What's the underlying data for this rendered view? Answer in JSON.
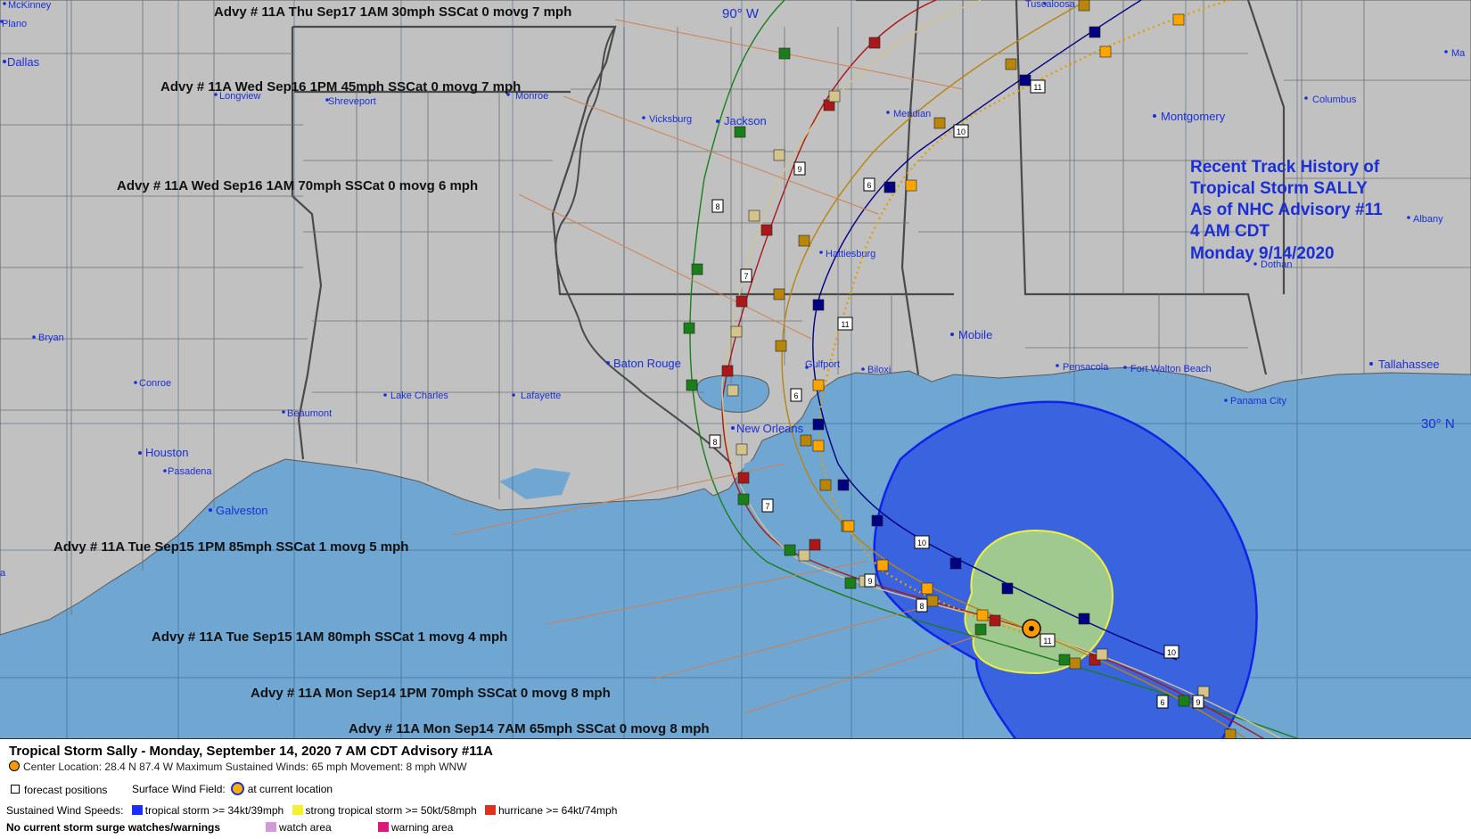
{
  "colors": {
    "land": "#c1c1c1",
    "water": "#6fa6d2",
    "ts_wind": "#3a63e0",
    "ts_wind_border": "#1023e8",
    "strong_ts_wind": "#a0c990",
    "strong_ts_border": "#f0f040",
    "boundary": "#505050",
    "title_text": "#1a2fd6",
    "legend_ts": "#1a2fff",
    "legend_strong": "#f7f030",
    "legend_hurricane": "#e0301e",
    "legend_watch": "#d49ad8",
    "legend_warning": "#e0167a"
  },
  "map_title": [
    "Recent Track History of",
    "Tropical Storm SALLY",
    "As of NHC Advisory #11",
    "4 AM CDT",
    "Monday 9/14/2020"
  ],
  "grid_labels": {
    "lon": "90° W",
    "lat": "30° N"
  },
  "cities": [
    {
      "name": "McKinney",
      "icon": "city-dot"
    },
    {
      "name": "Plano",
      "icon": "city-dot"
    },
    {
      "name": "Dallas",
      "icon": "city-dot"
    },
    {
      "name": "Tuscaloosa",
      "icon": "city-dot"
    },
    {
      "name": "Longview",
      "icon": "city-dot"
    },
    {
      "name": "Shreveport",
      "icon": "city-dot"
    },
    {
      "name": "Monroe",
      "icon": "city-dot"
    },
    {
      "name": "Vicksburg",
      "icon": "city-dot"
    },
    {
      "name": "Jackson",
      "icon": "city-dot"
    },
    {
      "name": "Meridian",
      "icon": "city-dot"
    },
    {
      "name": "Montgomery",
      "icon": "city-dot"
    },
    {
      "name": "Columbus",
      "icon": "city-dot"
    },
    {
      "name": "Albany",
      "icon": "city-dot"
    },
    {
      "name": "Dothan",
      "icon": "city-dot"
    },
    {
      "name": "Hattiesburg",
      "icon": "city-dot"
    },
    {
      "name": "Bryan",
      "icon": "city-dot"
    },
    {
      "name": "Conroe",
      "icon": "city-dot"
    },
    {
      "name": "Baton Rouge",
      "icon": "city-dot"
    },
    {
      "name": "Lake Charles",
      "icon": "city-dot"
    },
    {
      "name": "Lafayette",
      "icon": "city-dot"
    },
    {
      "name": "Beaumont",
      "icon": "city-dot"
    },
    {
      "name": "Mobile",
      "icon": "city-dot"
    },
    {
      "name": "Gulfport",
      "icon": "city-dot"
    },
    {
      "name": "Biloxi",
      "icon": "city-dot"
    },
    {
      "name": "Pensacola",
      "icon": "city-dot"
    },
    {
      "name": "Fort Walton Beach",
      "icon": "city-dot"
    },
    {
      "name": "Tallahassee",
      "icon": "city-dot"
    },
    {
      "name": "Panama City",
      "icon": "city-dot"
    },
    {
      "name": "New Orleans",
      "icon": "city-dot"
    },
    {
      "name": "Houston",
      "icon": "city-dot"
    },
    {
      "name": "Pasadena",
      "icon": "city-dot"
    },
    {
      "name": "Galveston",
      "icon": "city-dot"
    },
    {
      "name": "Ma",
      "icon": "city-dot"
    },
    {
      "name": "a",
      "icon": "city-dot"
    }
  ],
  "advisories": [
    {
      "text": "Advy # 11A Thu Sep17 1AM  30mph SSCat 0 movg 7 mph",
      "color": "#e0a000"
    },
    {
      "text": "Advy # 11A Wed Sep16 1PM  45mph SSCat 0 movg 7 mph",
      "color": "#000080"
    },
    {
      "text": "Advy # 11A Wed Sep16 1AM  70mph SSCat 0 movg 6 mph",
      "color": "#b8860b"
    },
    {
      "text": "Advy # 11A Tue Sep15 1PM  85mph SSCat 1 movg 5 mph",
      "color": "#ff9900"
    },
    {
      "text": "Advy # 11A Tue Sep15 1AM  80mph SSCat 1 movg 4 mph",
      "color": "#d2c48a"
    },
    {
      "text": "Advy # 11A Mon Sep14 1PM  70mph SSCat 0 movg 8 mph",
      "color": "#aa1818"
    },
    {
      "text": "Advy # 11A Mon Sep14 7AM  65mph SSCat 0 movg 8 mph",
      "color": "#1a7f1a"
    }
  ],
  "track_numbers": [
    "6",
    "7",
    "8",
    "9",
    "10",
    "11",
    "6",
    "9",
    "10",
    "11",
    "9",
    "8",
    "6",
    "11",
    "7",
    "8",
    "10"
  ],
  "legend": {
    "title": "Tropical Storm Sally  -  Monday, September 14, 2020  7 AM CDT   Advisory #11A",
    "center": "Center Location: 28.4 N  87.4 W   Maximum Sustained Winds: 65 mph  Movement: 8 mph WNW",
    "forecast": "forecast positions",
    "surface_wind": "Surface Wind Field:",
    "current_location": "at current location",
    "speeds_label": "Sustained Wind Speeds:",
    "ts": "tropical storm >= 34kt/39mph",
    "strong_ts": "strong tropical storm >= 50kt/58mph",
    "hurricane": "hurricane >= 64kt/74mph",
    "surge": "No current storm surge watches/warnings",
    "watch": "watch area",
    "warning": "warning area"
  }
}
